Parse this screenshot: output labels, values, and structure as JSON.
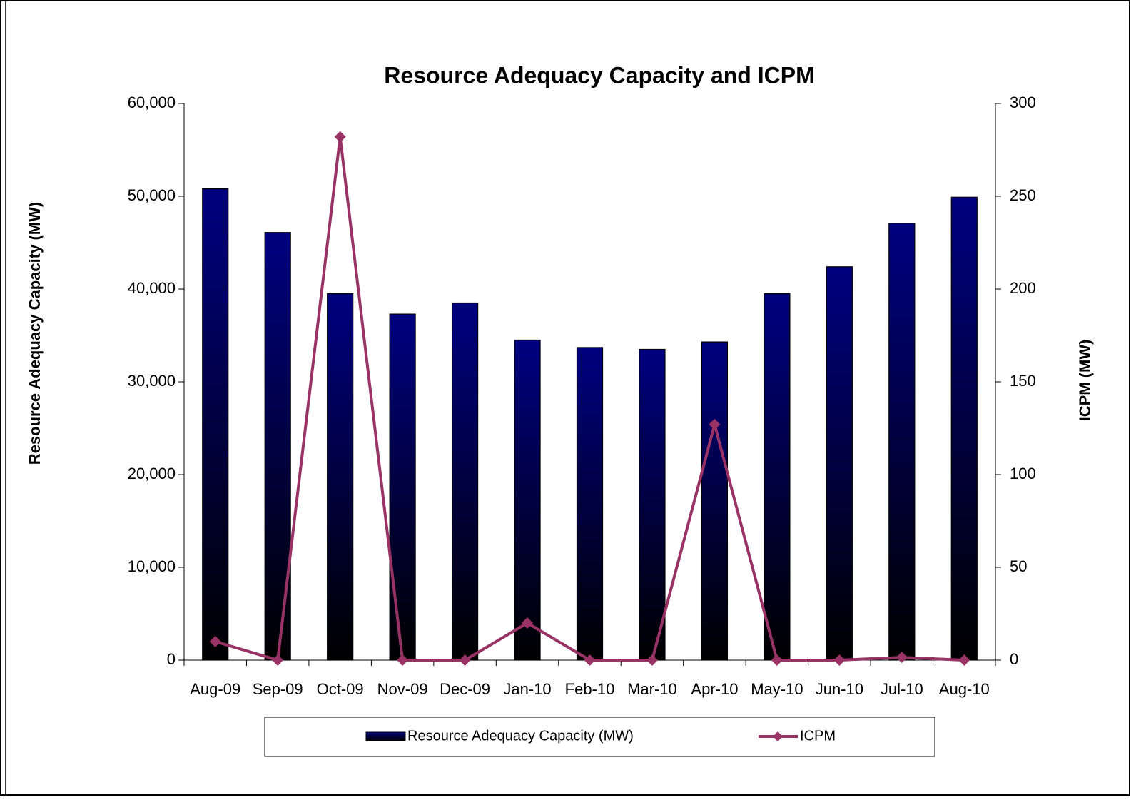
{
  "chart_data": {
    "type": "bar_line",
    "title": "Resource Adequacy Capacity and ICPM",
    "y_label": "Resource Adequacy Capacity (MW)",
    "y2_label": "ICPM (MW)",
    "categories": [
      "Aug-09",
      "Sep-09",
      "Oct-09",
      "Nov-09",
      "Dec-09",
      "Jan-10",
      "Feb-10",
      "Mar-10",
      "Apr-10",
      "May-10",
      "Jun-10",
      "Jul-10",
      "Aug-10"
    ],
    "series": [
      {
        "name": "Resource Adequacy Capacity (MW)",
        "type": "bar",
        "color": "#000080",
        "values": [
          50800,
          46100,
          39500,
          37300,
          38500,
          34500,
          33700,
          33500,
          34300,
          39500,
          42400,
          47100,
          49900
        ]
      },
      {
        "name": "ICPM",
        "type": "line",
        "axis": "y2",
        "color": "#993366",
        "values": [
          10,
          0,
          282,
          0,
          0,
          20,
          0,
          0,
          127,
          0,
          0,
          1.5,
          0
        ]
      }
    ],
    "ylim": [
      0,
      60000
    ],
    "yticks": [
      0,
      {
        "value": 10000,
        "label": "10,000"
      },
      {
        "value": 20000,
        "label": "20,000"
      },
      {
        "value": 30000,
        "label": "30,000"
      },
      {
        "value": 40000,
        "label": "40,000"
      },
      {
        "value": 50000,
        "label": "50,000"
      },
      {
        "value": 60000,
        "label": "60,000"
      }
    ],
    "y2lim": [
      0,
      300
    ],
    "y2ticks": [
      0,
      50,
      100,
      150,
      200,
      250,
      300
    ],
    "legend": "bottom"
  }
}
